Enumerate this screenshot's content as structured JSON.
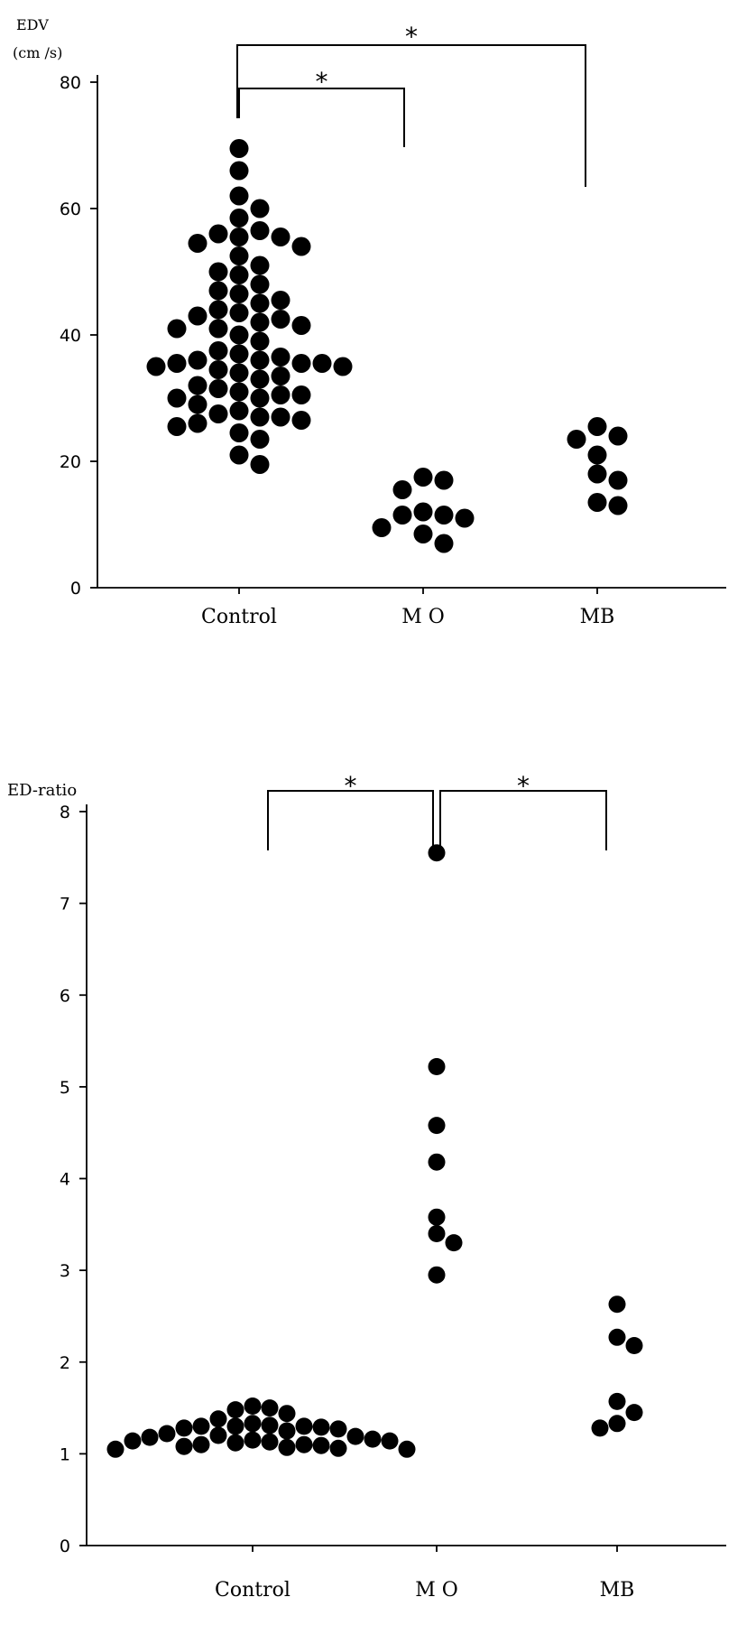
{
  "chart_data": [
    {
      "type": "scatter",
      "ylabel": "EDV",
      "yunit": "(cm /s)",
      "ylim": [
        0,
        80
      ],
      "yticks": [
        0,
        20,
        40,
        60,
        80
      ],
      "categories": [
        "Control",
        "M O",
        "MB"
      ],
      "series": [
        {
          "category": "Control",
          "values": [
            69.5,
            66,
            62,
            60,
            58.5,
            56.5,
            56,
            55.5,
            55.5,
            54,
            54.5,
            52.5,
            51,
            50,
            49.5,
            48,
            47,
            46.5,
            45.5,
            45,
            44,
            43.5,
            43,
            42.5,
            42,
            41.5,
            41,
            41,
            40,
            39,
            37.5,
            37,
            36.5,
            36,
            36,
            35.5,
            35.5,
            35.5,
            35,
            35,
            34.5,
            34,
            33.5,
            33,
            32,
            31.5,
            31,
            30.5,
            30.5,
            30,
            30,
            29,
            28,
            27.5,
            27,
            27,
            26.5,
            26,
            25.5,
            24.5,
            23.5,
            21,
            19.5
          ]
        },
        {
          "category": "M O",
          "values": [
            17.5,
            17,
            15.5,
            12,
            11.5,
            11.5,
            11,
            9.5,
            8.5,
            7
          ]
        },
        {
          "category": "MB",
          "values": [
            25.5,
            24,
            23.5,
            21,
            18,
            17,
            13.5,
            13
          ]
        }
      ],
      "significance": [
        {
          "pair": [
            "Control",
            "M O"
          ],
          "label": "*"
        },
        {
          "pair": [
            "Control",
            "MB"
          ],
          "label": "*"
        }
      ]
    },
    {
      "type": "scatter",
      "ylabel": "ED-ratio",
      "ylim": [
        0,
        8
      ],
      "yticks": [
        0,
        1,
        2,
        3,
        4,
        5,
        6,
        7,
        8
      ],
      "categories": [
        "Control",
        "M O",
        "MB"
      ],
      "series": [
        {
          "category": "Control",
          "values": [
            1.5,
            1.48,
            1.52,
            1.44,
            1.38,
            1.33,
            1.31,
            1.3,
            1.3,
            1.3,
            1.29,
            1.28,
            1.27,
            1.25,
            1.22,
            1.2,
            1.19,
            1.18,
            1.16,
            1.15,
            1.14,
            1.14,
            1.13,
            1.12,
            1.1,
            1.1,
            1.09,
            1.08,
            1.07,
            1.06,
            1.05,
            1.05
          ]
        },
        {
          "category": "M O",
          "values": [
            7.55,
            5.22,
            4.58,
            4.18,
            3.58,
            3.4,
            3.3,
            2.95
          ]
        },
        {
          "category": "MB",
          "values": [
            2.63,
            2.27,
            2.18,
            1.57,
            1.45,
            1.33,
            1.28
          ]
        }
      ],
      "significance": [
        {
          "pair": [
            "Control",
            "M O"
          ],
          "label": "*"
        },
        {
          "pair": [
            "M O",
            "MB"
          ],
          "label": "*"
        }
      ]
    }
  ]
}
